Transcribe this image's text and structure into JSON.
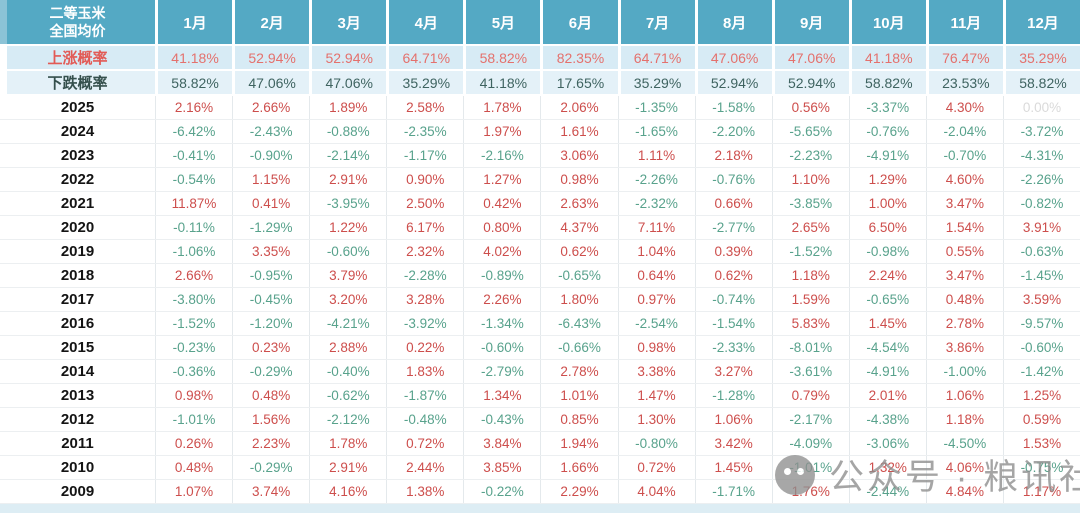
{
  "table": {
    "corner": {
      "line1": "二等玉米",
      "line2": "全国均价"
    },
    "months": [
      "1月",
      "2月",
      "3月",
      "4月",
      "5月",
      "6月",
      "7月",
      "8月",
      "9月",
      "10月",
      "11月",
      "12月"
    ],
    "rise": {
      "label": "上涨概率",
      "values": [
        "41.18%",
        "52.94%",
        "52.94%",
        "64.71%",
        "58.82%",
        "82.35%",
        "64.71%",
        "47.06%",
        "47.06%",
        "41.18%",
        "76.47%",
        "35.29%"
      ]
    },
    "fall": {
      "label": "下跌概率",
      "values": [
        "58.82%",
        "47.06%",
        "47.06%",
        "35.29%",
        "41.18%",
        "17.65%",
        "35.29%",
        "52.94%",
        "52.94%",
        "58.82%",
        "23.53%",
        "58.82%"
      ]
    },
    "years": [
      {
        "year": "2025",
        "values": [
          "2.16%",
          "2.66%",
          "1.89%",
          "2.58%",
          "1.78%",
          "2.06%",
          "-1.35%",
          "-1.58%",
          "0.56%",
          "-3.37%",
          "4.30%",
          "0.00%"
        ]
      },
      {
        "year": "2024",
        "values": [
          "-6.42%",
          "-2.43%",
          "-0.88%",
          "-2.35%",
          "1.97%",
          "1.61%",
          "-1.65%",
          "-2.20%",
          "-5.65%",
          "-0.76%",
          "-2.04%",
          "-3.72%"
        ]
      },
      {
        "year": "2023",
        "values": [
          "-0.41%",
          "-0.90%",
          "-2.14%",
          "-1.17%",
          "-2.16%",
          "3.06%",
          "1.11%",
          "2.18%",
          "-2.23%",
          "-4.91%",
          "-0.70%",
          "-4.31%"
        ]
      },
      {
        "year": "2022",
        "values": [
          "-0.54%",
          "1.15%",
          "2.91%",
          "0.90%",
          "1.27%",
          "0.98%",
          "-2.26%",
          "-0.76%",
          "1.10%",
          "1.29%",
          "4.60%",
          "-2.26%"
        ]
      },
      {
        "year": "2021",
        "values": [
          "11.87%",
          "0.41%",
          "-3.95%",
          "2.50%",
          "0.42%",
          "2.63%",
          "-2.32%",
          "0.66%",
          "-3.85%",
          "1.00%",
          "3.47%",
          "-0.82%"
        ]
      },
      {
        "year": "2020",
        "values": [
          "-0.11%",
          "-1.29%",
          "1.22%",
          "6.17%",
          "0.80%",
          "4.37%",
          "7.11%",
          "-2.77%",
          "2.65%",
          "6.50%",
          "1.54%",
          "3.91%"
        ]
      },
      {
        "year": "2019",
        "values": [
          "-1.06%",
          "3.35%",
          "-0.60%",
          "2.32%",
          "4.02%",
          "0.62%",
          "1.04%",
          "0.39%",
          "-1.52%",
          "-0.98%",
          "0.55%",
          "-0.63%"
        ]
      },
      {
        "year": "2018",
        "values": [
          "2.66%",
          "-0.95%",
          "3.79%",
          "-2.28%",
          "-0.89%",
          "-0.65%",
          "0.64%",
          "0.62%",
          "1.18%",
          "2.24%",
          "3.47%",
          "-1.45%"
        ]
      },
      {
        "year": "2017",
        "values": [
          "-3.80%",
          "-0.45%",
          "3.20%",
          "3.28%",
          "2.26%",
          "1.80%",
          "0.97%",
          "-0.74%",
          "1.59%",
          "-0.65%",
          "0.48%",
          "3.59%"
        ]
      },
      {
        "year": "2016",
        "values": [
          "-1.52%",
          "-1.20%",
          "-4.21%",
          "-3.92%",
          "-1.34%",
          "-6.43%",
          "-2.54%",
          "-1.54%",
          "5.83%",
          "1.45%",
          "2.78%",
          "-9.57%"
        ]
      },
      {
        "year": "2015",
        "values": [
          "-0.23%",
          "0.23%",
          "2.88%",
          "0.22%",
          "-0.60%",
          "-0.66%",
          "0.98%",
          "-2.33%",
          "-8.01%",
          "-4.54%",
          "3.86%",
          "-0.60%"
        ]
      },
      {
        "year": "2014",
        "values": [
          "-0.36%",
          "-0.29%",
          "-0.40%",
          "1.83%",
          "-2.79%",
          "2.78%",
          "3.38%",
          "3.27%",
          "-3.61%",
          "-4.91%",
          "-1.00%",
          "-1.42%"
        ]
      },
      {
        "year": "2013",
        "values": [
          "0.98%",
          "0.48%",
          "-0.62%",
          "-1.87%",
          "1.34%",
          "1.01%",
          "1.47%",
          "-1.28%",
          "0.79%",
          "2.01%",
          "1.06%",
          "1.25%"
        ]
      },
      {
        "year": "2012",
        "values": [
          "-1.01%",
          "1.56%",
          "-2.12%",
          "-0.48%",
          "-0.43%",
          "0.85%",
          "1.30%",
          "1.06%",
          "-2.17%",
          "-4.38%",
          "1.18%",
          "0.59%"
        ]
      },
      {
        "year": "2011",
        "values": [
          "0.26%",
          "2.23%",
          "1.78%",
          "0.72%",
          "3.84%",
          "1.94%",
          "-0.80%",
          "3.42%",
          "-4.09%",
          "-3.06%",
          "-4.50%",
          "1.53%"
        ]
      },
      {
        "year": "2010",
        "values": [
          "0.48%",
          "-0.29%",
          "2.91%",
          "2.44%",
          "3.85%",
          "1.66%",
          "0.72%",
          "1.45%",
          "-1.01%",
          "1.32%",
          "4.06%",
          "-0.75%"
        ]
      },
      {
        "year": "2009",
        "values": [
          "1.07%",
          "3.74%",
          "4.16%",
          "1.38%",
          "-0.22%",
          "2.29%",
          "4.04%",
          "-1.71%",
          "1.76%",
          "-2.44%",
          "4.84%",
          "1.17%"
        ]
      }
    ]
  },
  "watermark": {
    "text": "公众号 · 粮讯社"
  },
  "colors": {
    "header_bg": "#54a9c4",
    "rise_row_bg": "#d7ebf5",
    "fall_row_bg": "#e4f1f8",
    "rise_text": "#e4716d",
    "fall_text": "#3e6360",
    "positive": "#cd4e4c",
    "negative": "#58a28c",
    "muted_zero": "#dadada",
    "watermark_gray": "#8d8d8d"
  }
}
